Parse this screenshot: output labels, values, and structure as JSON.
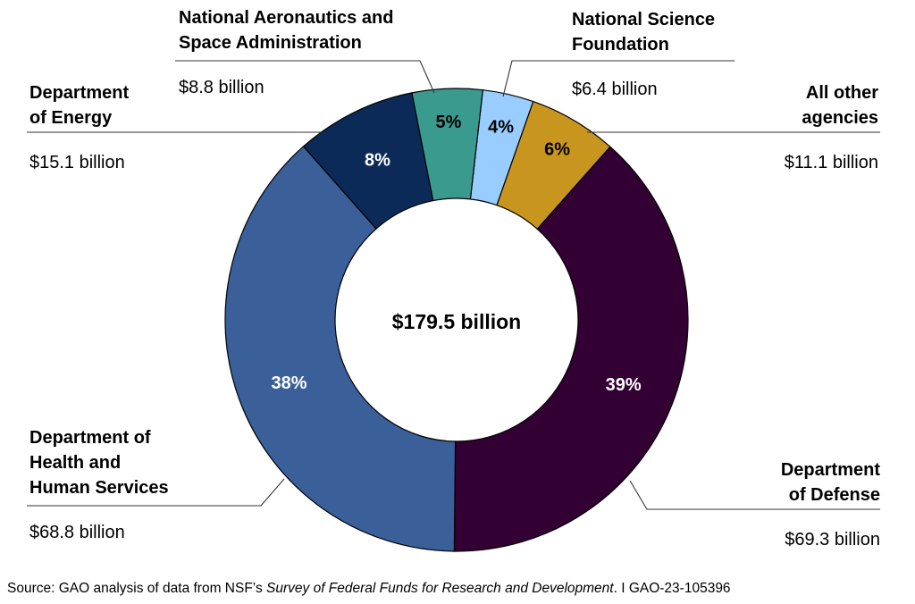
{
  "chart_data": {
    "type": "pie",
    "variant": "donut",
    "center_label": "$179.5 billion",
    "slices": [
      {
        "label_lines": [
          "National Science",
          "Foundation"
        ],
        "amount": "$6.4 billion",
        "value": 6.4,
        "percent": "4%",
        "color": "#99ccff",
        "pct_color": "#000000"
      },
      {
        "label_lines": [
          "All other",
          "agencies"
        ],
        "amount": "$11.1 billion",
        "value": 11.1,
        "percent": "6%",
        "color": "#c8961e",
        "pct_color": "#000000"
      },
      {
        "label_lines": [
          "Department",
          "of Defense"
        ],
        "amount": "$69.3 billion",
        "value": 69.3,
        "percent": "39%",
        "color": "#330033",
        "pct_color": "#ffffff"
      },
      {
        "label_lines": [
          "Department of",
          "Health and",
          "Human Services"
        ],
        "amount": "$68.8 billion",
        "value": 68.8,
        "percent": "38%",
        "color": "#3a5f99",
        "pct_color": "#ffffff"
      },
      {
        "label_lines": [
          "Department",
          "of Energy"
        ],
        "amount": "$15.1 billion",
        "value": 15.1,
        "percent": "8%",
        "color": "#0c2a57",
        "pct_color": "#ffffff"
      },
      {
        "label_lines": [
          "National Aeronautics and",
          "Space Administration"
        ],
        "amount": "$8.8 billion",
        "value": 8.8,
        "percent": "5%",
        "color": "#3a9a8e",
        "pct_color": "#000000"
      }
    ]
  },
  "source": {
    "prefix": "Source: GAO analysis of data from NSF’s ",
    "title": "Survey of Federal Funds for Research and Development",
    "suffix": ".  I  GAO-23-105396"
  }
}
